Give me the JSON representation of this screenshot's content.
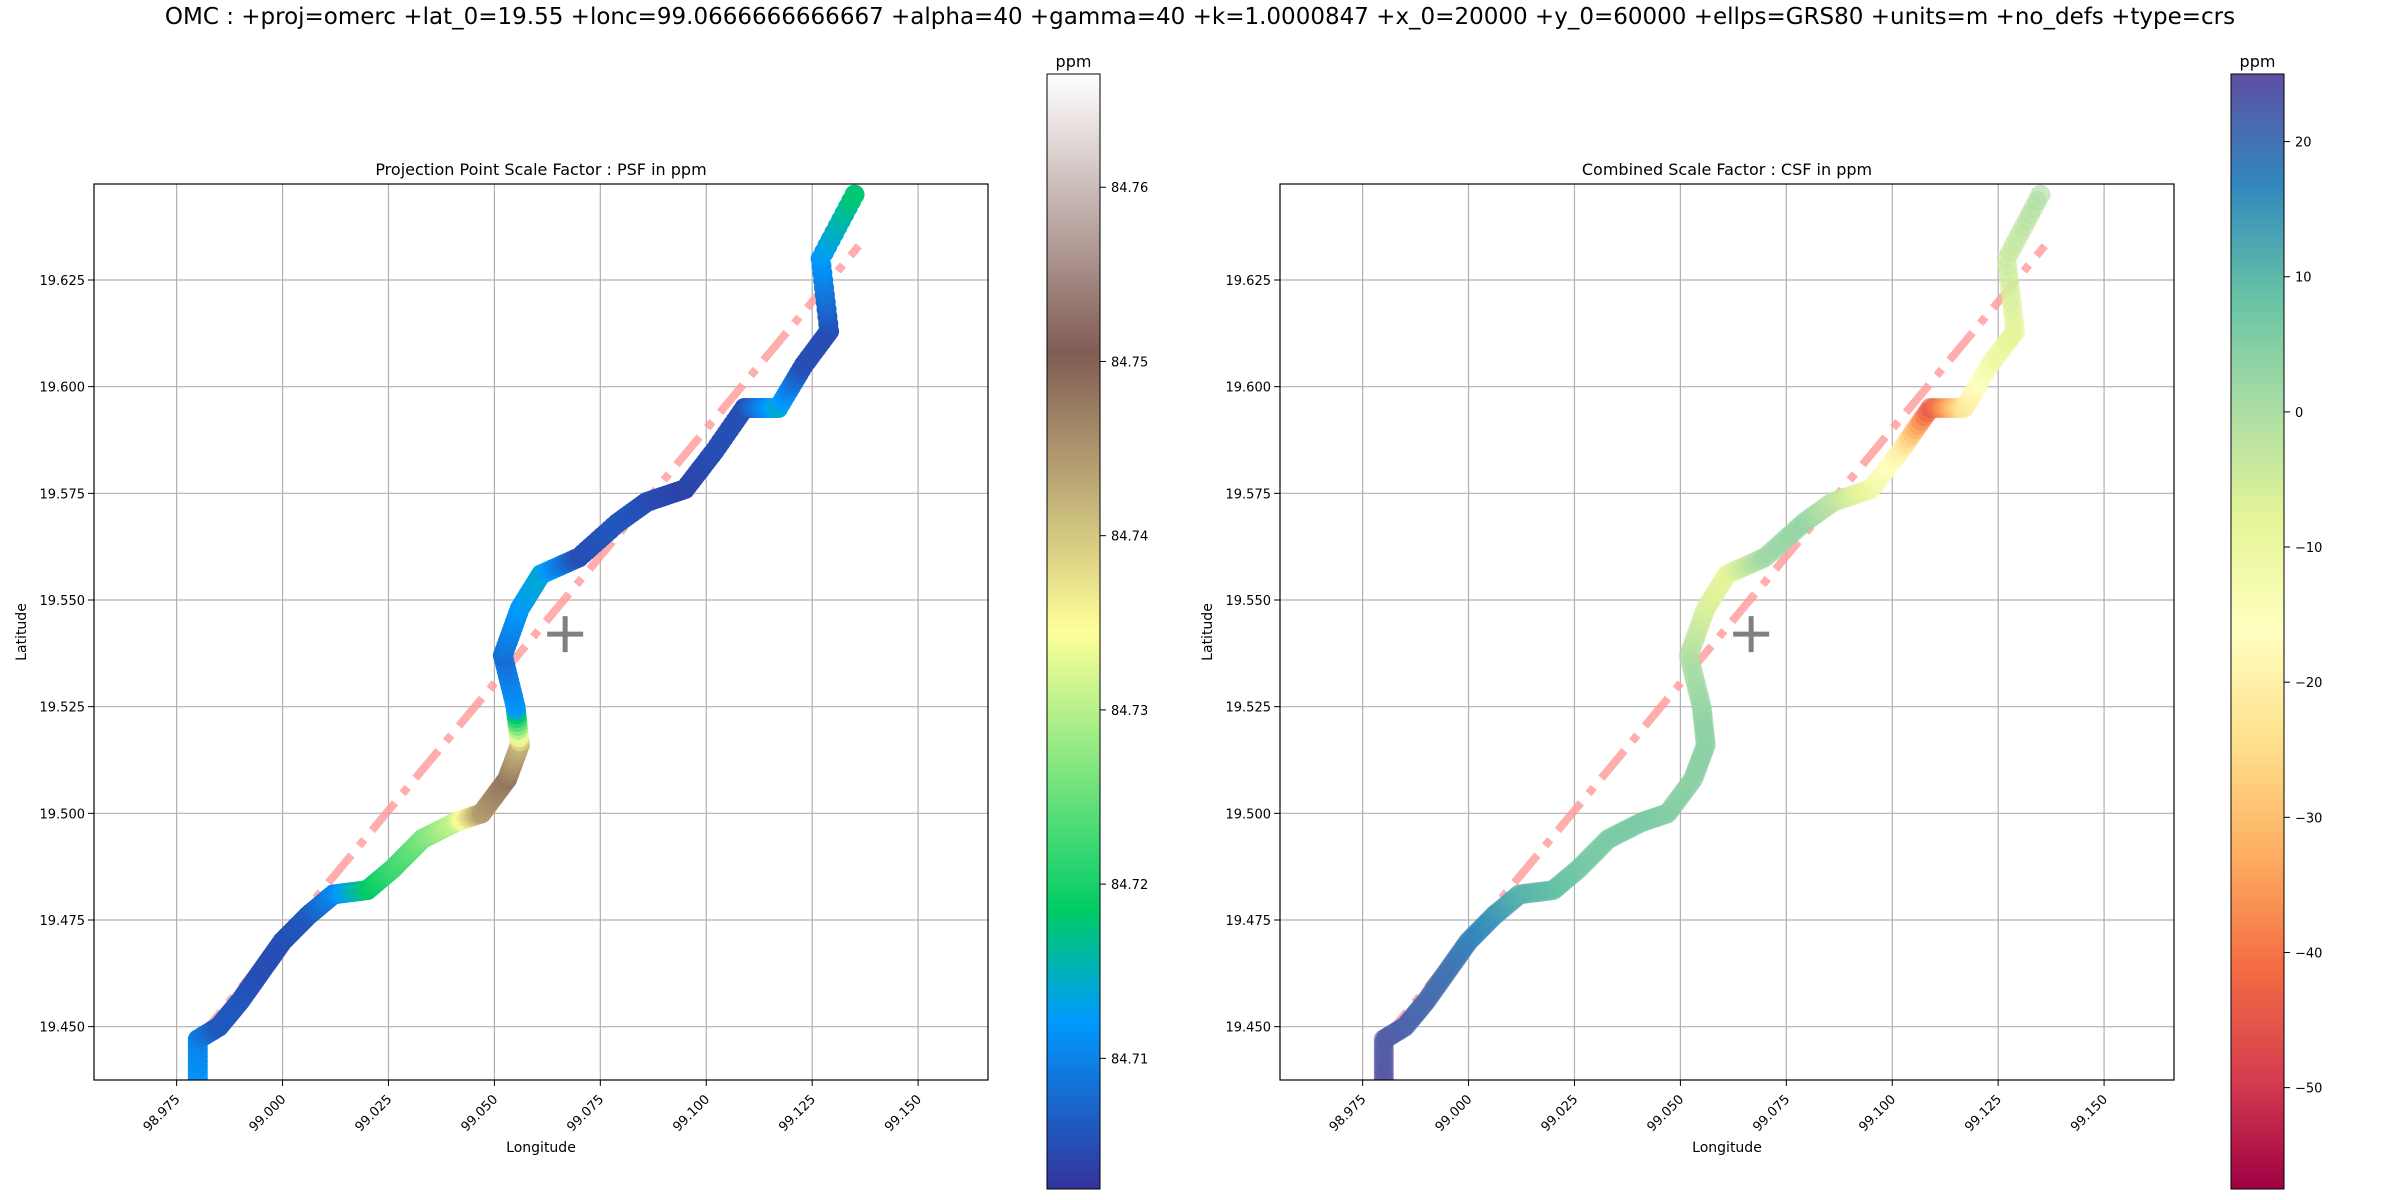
{
  "figure": {
    "suptitle": "OMC : +proj=omerc +lat_0=19.55 +lonc=99.0666666666667 +alpha=40 +gamma=40 +k=1.0000847 +x_0=20000 +y_0=60000 +ellps=GRS80 +units=m +no_defs +type=crs"
  },
  "chart_data": [
    {
      "type": "scatter",
      "title": "Projection Point Scale Factor : PSF in ppm",
      "xlabel": "Longitude",
      "ylabel": "Latitude",
      "xlim": [
        98.9555,
        99.1665
      ],
      "ylim": [
        19.4375,
        19.6475
      ],
      "x_ticks": [
        "98.975",
        "99.000",
        "99.025",
        "99.050",
        "99.075",
        "99.100",
        "99.125",
        "99.150"
      ],
      "y_ticks": [
        "19.450",
        "19.475",
        "19.500",
        "19.525",
        "19.550",
        "19.575",
        "19.600",
        "19.625"
      ],
      "grid": true,
      "colormap": "terrain",
      "colorbar": {
        "label": "ppm",
        "range": [
          84.7025,
          84.7665
        ],
        "ticks": [
          "84.71",
          "84.72",
          "84.73",
          "84.74",
          "84.75",
          "84.76"
        ]
      },
      "points": [
        {
          "lon": 98.98,
          "lat": 19.437,
          "value": 84.712
        },
        {
          "lon": 98.98,
          "lat": 19.447,
          "value": 84.71
        },
        {
          "lon": 98.985,
          "lat": 19.45,
          "value": 84.706
        },
        {
          "lon": 98.99,
          "lat": 19.456,
          "value": 84.706
        },
        {
          "lon": 98.995,
          "lat": 19.463,
          "value": 84.705
        },
        {
          "lon": 99.0,
          "lat": 19.47,
          "value": 84.705
        },
        {
          "lon": 99.006,
          "lat": 19.476,
          "value": 84.706
        },
        {
          "lon": 99.012,
          "lat": 19.481,
          "value": 84.71
        },
        {
          "lon": 99.02,
          "lat": 19.482,
          "value": 84.718
        },
        {
          "lon": 99.026,
          "lat": 19.487,
          "value": 84.722
        },
        {
          "lon": 99.033,
          "lat": 19.494,
          "value": 84.726
        },
        {
          "lon": 99.041,
          "lat": 19.498,
          "value": 84.731
        },
        {
          "lon": 99.047,
          "lat": 19.5,
          "value": 84.744
        },
        {
          "lon": 99.053,
          "lat": 19.508,
          "value": 84.748
        },
        {
          "lon": 99.056,
          "lat": 19.516,
          "value": 84.742
        },
        {
          "lon": 99.055,
          "lat": 19.525,
          "value": 84.712
        },
        {
          "lon": 99.052,
          "lat": 19.537,
          "value": 84.708
        },
        {
          "lon": 99.056,
          "lat": 19.548,
          "value": 84.712
        },
        {
          "lon": 99.061,
          "lat": 19.556,
          "value": 84.714
        },
        {
          "lon": 99.07,
          "lat": 19.56,
          "value": 84.705
        },
        {
          "lon": 99.079,
          "lat": 19.568,
          "value": 84.706
        },
        {
          "lon": 99.086,
          "lat": 19.573,
          "value": 84.705
        },
        {
          "lon": 99.095,
          "lat": 19.576,
          "value": 84.704
        },
        {
          "lon": 99.102,
          "lat": 19.585,
          "value": 84.705
        },
        {
          "lon": 99.109,
          "lat": 19.595,
          "value": 84.705
        },
        {
          "lon": 99.117,
          "lat": 19.595,
          "value": 84.714
        },
        {
          "lon": 99.123,
          "lat": 19.605,
          "value": 84.705
        },
        {
          "lon": 99.129,
          "lat": 19.613,
          "value": 84.705
        },
        {
          "lon": 99.127,
          "lat": 19.63,
          "value": 84.712
        },
        {
          "lon": 99.135,
          "lat": 19.645,
          "value": 84.718
        }
      ],
      "central_line": {
        "lon": [
          98.98,
          99.136
        ],
        "lat": [
          19.447,
          19.633
        ]
      },
      "center_marker": {
        "lon": 99.0667,
        "lat": 19.542
      }
    },
    {
      "type": "scatter",
      "title": "Combined Scale Factor : CSF in ppm",
      "xlabel": "Longitude",
      "ylabel": "Latitude",
      "xlim": [
        98.9555,
        99.1665
      ],
      "ylim": [
        19.4375,
        19.6475
      ],
      "x_ticks": [
        "98.975",
        "99.000",
        "99.025",
        "99.050",
        "99.075",
        "99.100",
        "99.125",
        "99.150"
      ],
      "y_ticks": [
        "19.450",
        "19.475",
        "19.500",
        "19.525",
        "19.550",
        "19.575",
        "19.600",
        "19.625"
      ],
      "grid": true,
      "colormap": "Spectral",
      "colorbar": {
        "label": "ppm",
        "range": [
          -57.5,
          25
        ],
        "ticks": [
          "20",
          "10",
          "0",
          "−10",
          "−20",
          "−30",
          "−40",
          "−50"
        ]
      },
      "points": [
        {
          "lon": 98.98,
          "lat": 19.437,
          "value": 24
        },
        {
          "lon": 98.98,
          "lat": 19.447,
          "value": 23
        },
        {
          "lon": 98.985,
          "lat": 19.45,
          "value": 22
        },
        {
          "lon": 98.99,
          "lat": 19.456,
          "value": 21
        },
        {
          "lon": 98.995,
          "lat": 19.463,
          "value": 20
        },
        {
          "lon": 99.0,
          "lat": 19.47,
          "value": 18
        },
        {
          "lon": 99.006,
          "lat": 19.476,
          "value": 15
        },
        {
          "lon": 99.012,
          "lat": 19.481,
          "value": 11
        },
        {
          "lon": 99.02,
          "lat": 19.482,
          "value": 9
        },
        {
          "lon": 99.026,
          "lat": 19.487,
          "value": 7
        },
        {
          "lon": 99.033,
          "lat": 19.494,
          "value": 6
        },
        {
          "lon": 99.041,
          "lat": 19.498,
          "value": 6
        },
        {
          "lon": 99.047,
          "lat": 19.5,
          "value": 5
        },
        {
          "lon": 99.053,
          "lat": 19.508,
          "value": 4
        },
        {
          "lon": 99.056,
          "lat": 19.516,
          "value": 4
        },
        {
          "lon": 99.055,
          "lat": 19.525,
          "value": 3
        },
        {
          "lon": 99.052,
          "lat": 19.537,
          "value": 0
        },
        {
          "lon": 99.056,
          "lat": 19.548,
          "value": -6
        },
        {
          "lon": 99.061,
          "lat": 19.556,
          "value": -8
        },
        {
          "lon": 99.07,
          "lat": 19.56,
          "value": 2
        },
        {
          "lon": 99.079,
          "lat": 19.568,
          "value": 3
        },
        {
          "lon": 99.086,
          "lat": 19.573,
          "value": -2
        },
        {
          "lon": 99.095,
          "lat": 19.576,
          "value": -10
        },
        {
          "lon": 99.102,
          "lat": 19.585,
          "value": -20
        },
        {
          "lon": 99.109,
          "lat": 19.595,
          "value": -45
        },
        {
          "lon": 99.117,
          "lat": 19.595,
          "value": -22
        },
        {
          "lon": 99.123,
          "lat": 19.605,
          "value": -12
        },
        {
          "lon": 99.129,
          "lat": 19.613,
          "value": -8
        },
        {
          "lon": 99.127,
          "lat": 19.63,
          "value": -4
        },
        {
          "lon": 99.135,
          "lat": 19.645,
          "value": 0
        }
      ],
      "central_line": {
        "lon": [
          98.98,
          99.136
        ],
        "lat": [
          19.447,
          19.633
        ]
      },
      "center_marker": {
        "lon": 99.0667,
        "lat": 19.542
      }
    }
  ]
}
